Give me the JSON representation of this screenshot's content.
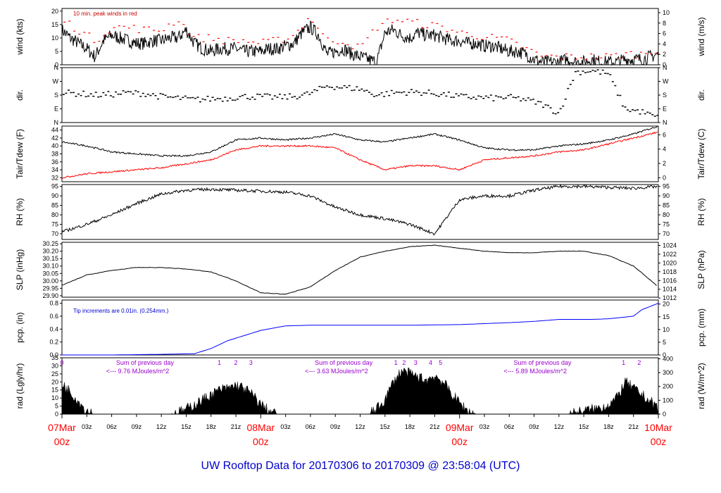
{
  "title": "UW Rooftop Data for 20170306  to  20170309 @ 23:58:04  (UTC)",
  "time_axis": {
    "hours_total": 72,
    "day_labels": [
      {
        "hour": 0,
        "date": "07Mar",
        "time": "00z"
      },
      {
        "hour": 24,
        "date": "08Mar",
        "time": "00z"
      },
      {
        "hour": 48,
        "date": "09Mar",
        "time": "00z"
      },
      {
        "hour": 72,
        "date": "10Mar",
        "time": "00z"
      }
    ],
    "hour_labels": [
      {
        "hour": 3,
        "text": "03z"
      },
      {
        "hour": 6,
        "text": "06z"
      },
      {
        "hour": 9,
        "text": "09z"
      },
      {
        "hour": 12,
        "text": "12z"
      },
      {
        "hour": 15,
        "text": "15z"
      },
      {
        "hour": 18,
        "text": "18z"
      },
      {
        "hour": 21,
        "text": "21z"
      },
      {
        "hour": 27,
        "text": "03z"
      },
      {
        "hour": 30,
        "text": "06z"
      },
      {
        "hour": 33,
        "text": "09z"
      },
      {
        "hour": 36,
        "text": "12z"
      },
      {
        "hour": 39,
        "text": "15z"
      },
      {
        "hour": 42,
        "text": "18z"
      },
      {
        "hour": 45,
        "text": "21z"
      },
      {
        "hour": 51,
        "text": "03z"
      },
      {
        "hour": 54,
        "text": "06z"
      },
      {
        "hour": 57,
        "text": "09z"
      },
      {
        "hour": 60,
        "text": "12z"
      },
      {
        "hour": 63,
        "text": "15z"
      },
      {
        "hour": 66,
        "text": "18z"
      },
      {
        "hour": 69,
        "text": "21z"
      }
    ]
  },
  "colors": {
    "primary_series": "#000000",
    "peak_wind": "#ff0000",
    "dewpoint": "#ff0000",
    "precip": "#0000ff",
    "annotation_purple": "#9900cc",
    "day_label": "#ff0000",
    "title": "#0000cc"
  },
  "panels": {
    "wind": {
      "ylabel_left": "wind (kts)",
      "ylabel_right": "wind (m/s)",
      "left_ticks": [
        "0",
        "5",
        "10",
        "15",
        "20"
      ],
      "right_ticks": [
        "0",
        "2",
        "4",
        "6",
        "8",
        "10"
      ],
      "note": "10 min. peak winds in red"
    },
    "dir": {
      "ylabel_left": "dir.",
      "ylabel_right": "dir.",
      "ticks": [
        "N",
        "E",
        "S",
        "W",
        "N"
      ]
    },
    "temp": {
      "ylabel_left": "Tair/Tdew (F)",
      "ylabel_right": "Tair/Tdew (C)",
      "left_ticks": [
        "32",
        "34",
        "36",
        "38",
        "40",
        "42",
        "44"
      ],
      "right_ticks": [
        "0",
        "2",
        "4",
        "6"
      ]
    },
    "rh": {
      "ylabel_left": "RH (%)",
      "ylabel_right": "RH (%)",
      "ticks": [
        "70",
        "75",
        "80",
        "85",
        "90",
        "95"
      ]
    },
    "slp": {
      "ylabel_left": "SLP (inHg)",
      "ylabel_right": "SLP (hPa)",
      "left_ticks": [
        "29.90",
        "29.95",
        "30.00",
        "30.05",
        "30.10",
        "30.15",
        "30.20",
        "30.25"
      ],
      "right_ticks": [
        "1012",
        "1014",
        "1016",
        "1018",
        "1020",
        "1022",
        "1024"
      ]
    },
    "pcp": {
      "ylabel_left": "pcp. (in)",
      "ylabel_right": "pcp. (mm)",
      "left_ticks": [
        "0.0",
        "0.2",
        "0.4",
        "0.6",
        "0.8"
      ],
      "right_ticks": [
        "0",
        "5",
        "10",
        "15",
        "20"
      ],
      "note": "Tip increments are 0.01in. (0.254mm.)"
    },
    "rad": {
      "ylabel_left": "rad (Lgly/hr)",
      "ylabel_right": "rad (W/m^2)",
      "left_ticks": [
        "0",
        "5",
        "10",
        "15",
        "20",
        "25",
        "30",
        "35"
      ],
      "right_ticks": [
        "0",
        "100",
        "200",
        "300",
        "400"
      ],
      "day_sums": [
        {
          "hour": 5,
          "line1": "Sum of previous day",
          "line2": "<--- 9.76 MJoules/m^2"
        },
        {
          "hour": 29,
          "line1": "Sum of previous day",
          "line2": "<--- 3.63 MJoules/m^2"
        },
        {
          "hour": 53,
          "line1": "Sum of previous day",
          "line2": "<--- 5.89 MJoules/m^2"
        }
      ],
      "hour_marks": [
        {
          "hour": 0,
          "text": "0"
        },
        {
          "hour": 19,
          "text": "1"
        },
        {
          "hour": 21,
          "text": "2"
        },
        {
          "hour": 22.8,
          "text": "3"
        },
        {
          "hour": 40.3,
          "text": "1"
        },
        {
          "hour": 41.3,
          "text": "2"
        },
        {
          "hour": 42.7,
          "text": "3"
        },
        {
          "hour": 44.5,
          "text": "4"
        },
        {
          "hour": 45.7,
          "text": "5"
        },
        {
          "hour": 67.8,
          "text": "1"
        },
        {
          "hour": 69.7,
          "text": "2"
        }
      ]
    }
  },
  "chart_data": [
    {
      "type": "line",
      "name": "wind",
      "series": [
        {
          "name": "wind speed (kts)",
          "x": [
            0,
            1,
            2,
            3,
            4,
            5,
            6,
            7,
            8,
            9,
            10,
            11,
            12,
            13,
            14,
            15,
            16,
            17,
            18,
            19,
            20,
            21,
            22,
            23,
            24,
            25,
            26,
            27,
            28,
            29,
            30,
            31,
            32,
            33,
            34,
            35,
            36,
            37,
            38,
            39,
            40,
            41,
            42,
            43,
            44,
            45,
            46,
            47,
            48,
            49,
            50,
            51,
            52,
            53,
            54,
            55,
            56,
            57,
            58,
            59,
            60,
            61,
            62,
            63,
            64,
            65,
            66,
            67,
            68,
            69,
            70,
            71,
            72
          ],
          "values": [
            13,
            10,
            8,
            6,
            3,
            9,
            11,
            10,
            9,
            8,
            8,
            9,
            9,
            10,
            10,
            13,
            8,
            6,
            5,
            6,
            6,
            6,
            5,
            5,
            5,
            6,
            6,
            7,
            8,
            12,
            14,
            11,
            4,
            5,
            6,
            4,
            3,
            2,
            1,
            12,
            13,
            11,
            10,
            12,
            11,
            11,
            10,
            9,
            9,
            8,
            8,
            7,
            7,
            6,
            5,
            5,
            4,
            2,
            1,
            1,
            1,
            2,
            1,
            1,
            2,
            1,
            1,
            1,
            2,
            2,
            2,
            3,
            4
          ]
        },
        {
          "name": "10 min. peak winds (kts)",
          "x": [
            0,
            2,
            4,
            6,
            8,
            10,
            12,
            14,
            16,
            18,
            20,
            22,
            24,
            26,
            28,
            30,
            32,
            34,
            36,
            38,
            40,
            42,
            44,
            46,
            48,
            50,
            52,
            54,
            56,
            58,
            60,
            62,
            64,
            66,
            68,
            70,
            72
          ],
          "values": [
            17,
            13,
            9,
            14,
            14,
            13,
            13,
            17,
            10,
            10,
            9,
            9,
            8,
            9,
            11,
            18,
            9,
            9,
            6,
            14,
            17,
            16,
            15,
            14,
            12,
            11,
            10,
            9,
            6,
            3,
            3,
            3,
            3,
            3,
            4,
            4,
            6
          ]
        }
      ],
      "ylim": [
        0,
        21
      ]
    },
    {
      "type": "scatter",
      "name": "wind direction",
      "x": [
        0,
        2,
        4,
        6,
        8,
        10,
        12,
        14,
        16,
        18,
        20,
        22,
        24,
        26,
        28,
        30,
        32,
        34,
        36,
        38,
        40,
        42,
        44,
        46,
        48,
        50,
        52,
        54,
        56,
        58,
        60,
        62,
        64,
        66,
        68,
        70,
        72
      ],
      "values": [
        195,
        190,
        180,
        185,
        195,
        190,
        170,
        160,
        150,
        155,
        160,
        170,
        170,
        165,
        170,
        190,
        240,
        230,
        220,
        180,
        195,
        200,
        195,
        185,
        170,
        165,
        160,
        165,
        150,
        120,
        60,
        330,
        340,
        320,
        90,
        70,
        30
      ],
      "ylim": [
        0,
        360
      ]
    },
    {
      "type": "line",
      "name": "temperature",
      "series": [
        {
          "name": "Tair (F)",
          "x": [
            0,
            3,
            6,
            9,
            12,
            15,
            18,
            21,
            24,
            27,
            30,
            33,
            36,
            39,
            42,
            45,
            48,
            51,
            54,
            57,
            60,
            63,
            66,
            69,
            72
          ],
          "values": [
            41,
            40,
            38.5,
            38,
            37.5,
            37.5,
            38.5,
            41.5,
            42,
            41.5,
            42,
            43,
            41.5,
            41,
            42,
            43,
            41.5,
            39.5,
            39,
            39,
            40,
            40.5,
            41.5,
            43,
            45
          ]
        },
        {
          "name": "Tdew (F)",
          "x": [
            0,
            3,
            6,
            9,
            12,
            15,
            18,
            21,
            24,
            27,
            30,
            33,
            36,
            39,
            42,
            45,
            48,
            51,
            54,
            57,
            60,
            63,
            66,
            69,
            72
          ],
          "values": [
            32,
            33,
            33.5,
            34,
            34.5,
            35.5,
            36.5,
            39,
            40,
            40,
            40,
            39.5,
            36.5,
            34,
            35,
            35,
            34,
            36.5,
            37,
            37.5,
            38.5,
            39,
            40.5,
            42,
            43.5
          ]
        }
      ],
      "ylim": [
        31,
        45
      ]
    },
    {
      "type": "line",
      "name": "relative humidity",
      "x": [
        0,
        3,
        6,
        9,
        12,
        15,
        18,
        21,
        24,
        27,
        30,
        33,
        36,
        39,
        42,
        45,
        48,
        51,
        54,
        57,
        60,
        63,
        66,
        69,
        72
      ],
      "values": [
        71,
        75,
        80,
        86,
        91,
        93,
        93.5,
        93,
        92.5,
        92,
        90,
        84,
        80,
        78,
        75,
        70,
        88,
        90,
        90,
        93,
        95,
        95,
        94.5,
        94,
        95
      ],
      "ylim": [
        67,
        96
      ]
    },
    {
      "type": "line",
      "name": "sea level pressure",
      "x": [
        0,
        3,
        6,
        9,
        12,
        15,
        18,
        21,
        24,
        27,
        30,
        33,
        36,
        39,
        42,
        45,
        48,
        51,
        54,
        57,
        60,
        63,
        66,
        69,
        72
      ],
      "values": [
        29.97,
        30.04,
        30.07,
        30.09,
        30.09,
        30.08,
        30.06,
        30.0,
        29.92,
        29.91,
        29.96,
        30.07,
        30.16,
        30.2,
        30.23,
        30.24,
        30.22,
        30.2,
        30.19,
        30.19,
        30.2,
        30.2,
        30.17,
        30.1,
        29.96
      ],
      "ylim": [
        29.89,
        30.26
      ]
    },
    {
      "type": "line",
      "name": "precipitation (cumulative in)",
      "x": [
        0,
        6,
        12,
        16,
        18,
        20,
        22,
        24,
        27,
        30,
        36,
        42,
        48,
        54,
        57,
        60,
        64,
        66,
        69,
        70,
        72
      ],
      "values": [
        0,
        0,
        0.01,
        0.02,
        0.1,
        0.22,
        0.3,
        0.38,
        0.45,
        0.46,
        0.46,
        0.46,
        0.47,
        0.5,
        0.52,
        0.55,
        0.55,
        0.56,
        0.6,
        0.7,
        0.8
      ],
      "ylim": [
        0,
        0.85
      ]
    },
    {
      "type": "area",
      "name": "solar radiation (Lgly/hr)",
      "x": [
        0,
        1,
        2,
        3,
        4,
        13,
        14,
        15,
        16,
        17,
        18,
        19,
        20,
        21,
        22,
        23,
        24,
        25,
        26,
        37,
        38,
        39,
        40,
        41,
        42,
        43,
        44,
        45,
        46,
        47,
        48,
        49,
        50,
        61,
        62,
        63,
        64,
        65,
        66,
        67,
        68,
        69,
        70,
        71,
        72
      ],
      "values": [
        19,
        14,
        8,
        2,
        0,
        0,
        1,
        3,
        6,
        9,
        12,
        15,
        16,
        18,
        16,
        12,
        6,
        2,
        0,
        0,
        3,
        9,
        20,
        27,
        25,
        23,
        21,
        24,
        20,
        13,
        7,
        2,
        0,
        0,
        1,
        2,
        3,
        4,
        6,
        10,
        20,
        16,
        12,
        8,
        4
      ],
      "ylim": [
        0,
        35
      ]
    }
  ]
}
